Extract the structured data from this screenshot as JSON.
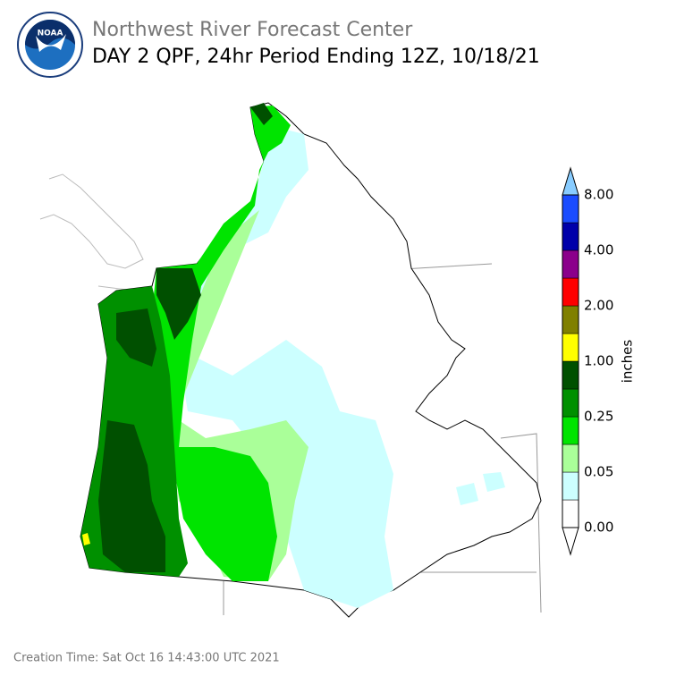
{
  "header": {
    "title": "Northwest River Forecast Center",
    "subtitle": "DAY 2 QPF, 24hr Period Ending 12Z, 10/18/21",
    "logo_text": "NOAA"
  },
  "legend": {
    "unit": "inches",
    "colors": [
      "#ffffff",
      "#ccffff",
      "#aaff99",
      "#00e400",
      "#009000",
      "#005000",
      "#ffff00",
      "#808000",
      "#ff0000",
      "#8b008b",
      "#0000aa",
      "#1a4cff"
    ],
    "under_color": "#ffffff",
    "over_color": "#88ccff",
    "labels": [
      "0.00",
      "0.05",
      "0.25",
      "1.00",
      "2.00",
      "4.00",
      "8.00"
    ]
  },
  "footer": {
    "creation_time": "Creation Time: Sat Oct 16 14:43:00 UTC 2021"
  }
}
